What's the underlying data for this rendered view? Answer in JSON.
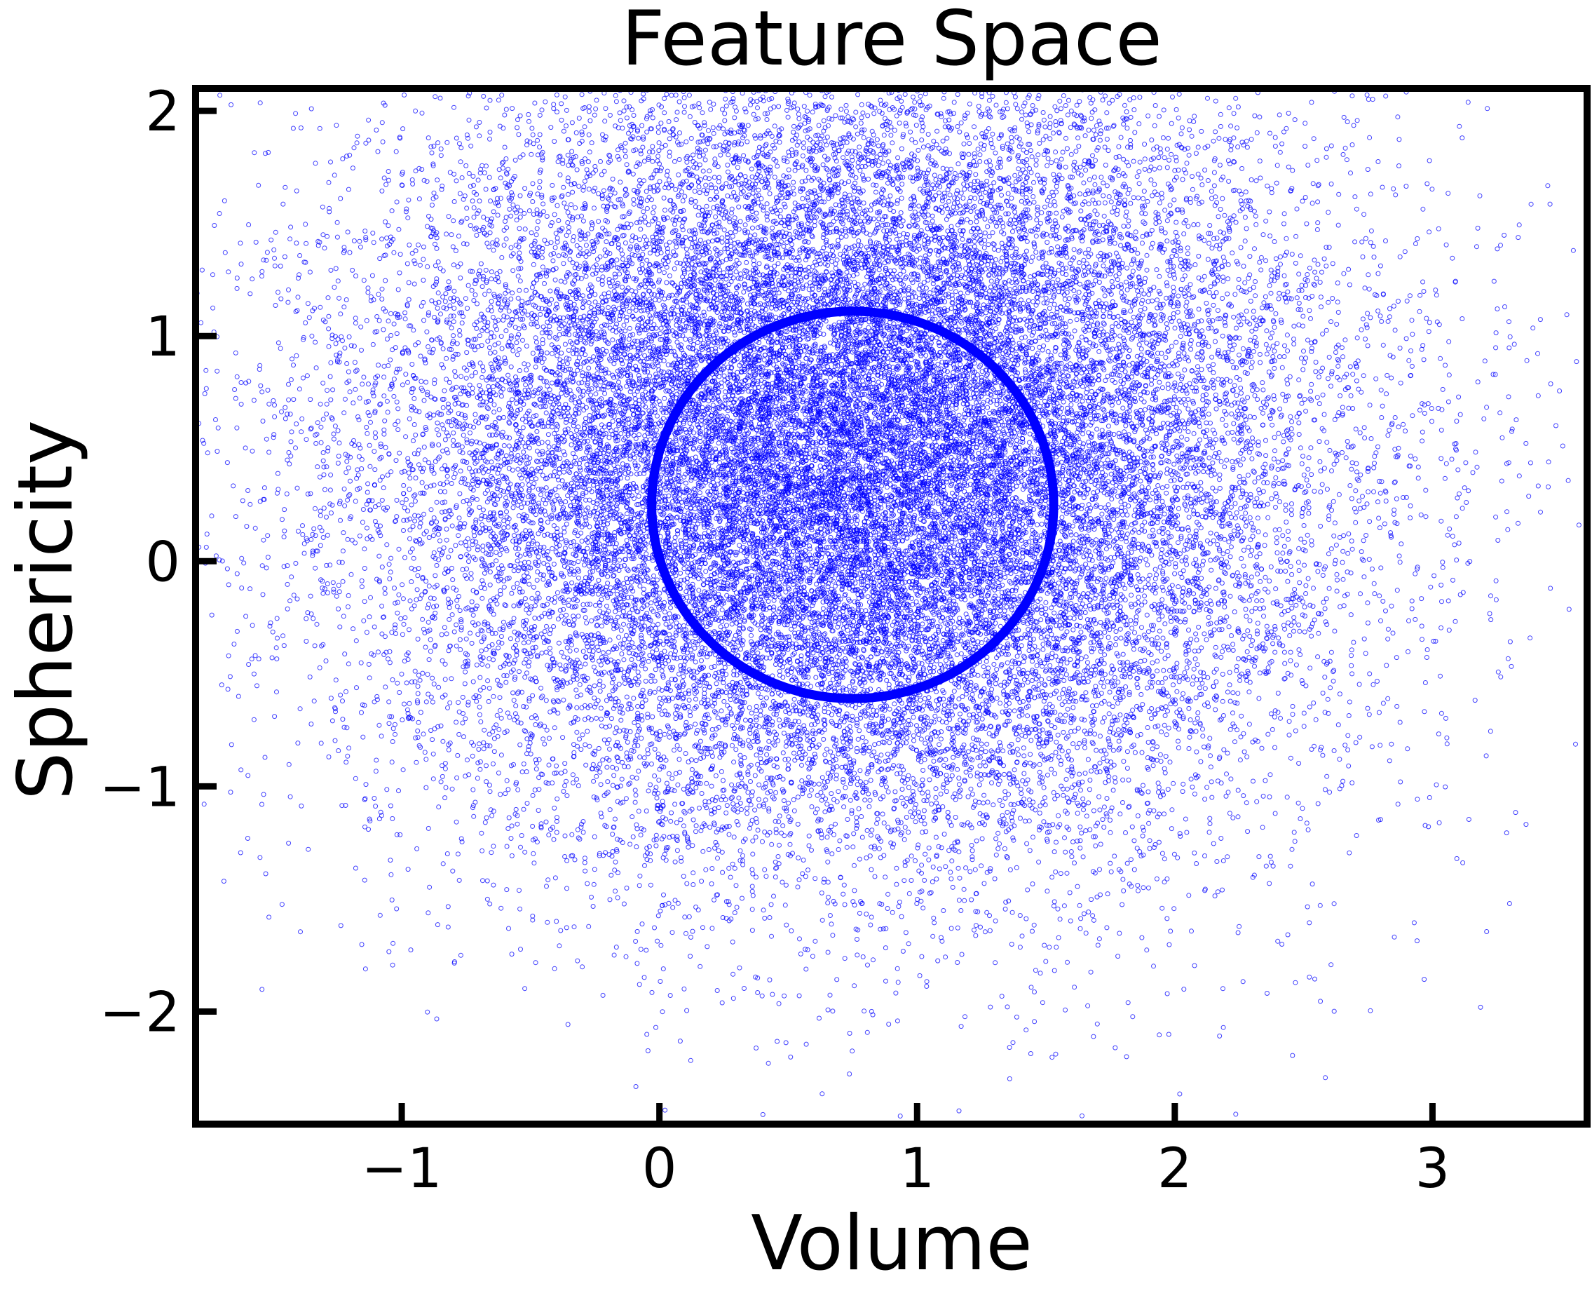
{
  "chart_data": {
    "type": "scatter",
    "title": "Feature Space",
    "xlabel": "Volume",
    "ylabel": "Sphericity",
    "xlim": [
      -1.8,
      3.6
    ],
    "ylim": [
      -2.5,
      2.1
    ],
    "xticks": [
      -1,
      0,
      1,
      2,
      3
    ],
    "yticks": [
      -2,
      -1,
      0,
      1,
      2
    ],
    "grid": false,
    "legend": "none",
    "series": [
      {
        "marker": "open-circle",
        "color": "#0000ff",
        "distribution": {
          "count": 32000,
          "center": [
            0.75,
            0.45
          ],
          "std": [
            0.9,
            0.85
          ]
        }
      }
    ],
    "annotations": [
      {
        "type": "circle",
        "center": [
          0.75,
          0.25
        ],
        "radius_x": 0.78,
        "radius_y": 0.86,
        "color": "#0000ff"
      }
    ]
  }
}
